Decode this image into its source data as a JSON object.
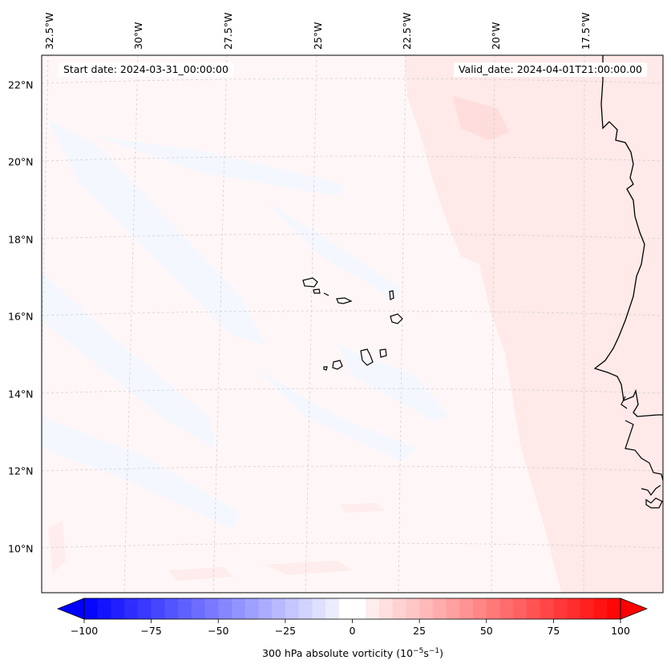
{
  "header": {
    "start_date": "Start date: 2024-03-31_00:00:00",
    "valid_date": "Valid_date: 2024-04-01T21:00:00.00"
  },
  "map": {
    "lon_labels": [
      "32.5°W",
      "30°W",
      "27.5°W",
      "25°W",
      "22.5°W",
      "20°W",
      "17.5°W"
    ],
    "lat_labels": [
      "22°N",
      "20°N",
      "18°N",
      "16°N",
      "14°N",
      "12°N",
      "10°N"
    ],
    "field_background": "#fff7f7",
    "positive_anomaly_color": "#ffe4e4",
    "negative_anomaly_color": "#f6f8ff",
    "coastline_color": "#000000"
  },
  "colorbar": {
    "ticks": [
      "−100",
      "−75",
      "−50",
      "−25",
      "0",
      "25",
      "50",
      "75",
      "100"
    ],
    "label_prefix": "300 hPa absolute vorticity (10",
    "label_exp1": "−5",
    "label_mid": "s",
    "label_exp2": "−1",
    "label_suffix": ")",
    "min_color": "#0000ff",
    "mid_color": "#ffffff",
    "max_color": "#ff0000"
  }
}
